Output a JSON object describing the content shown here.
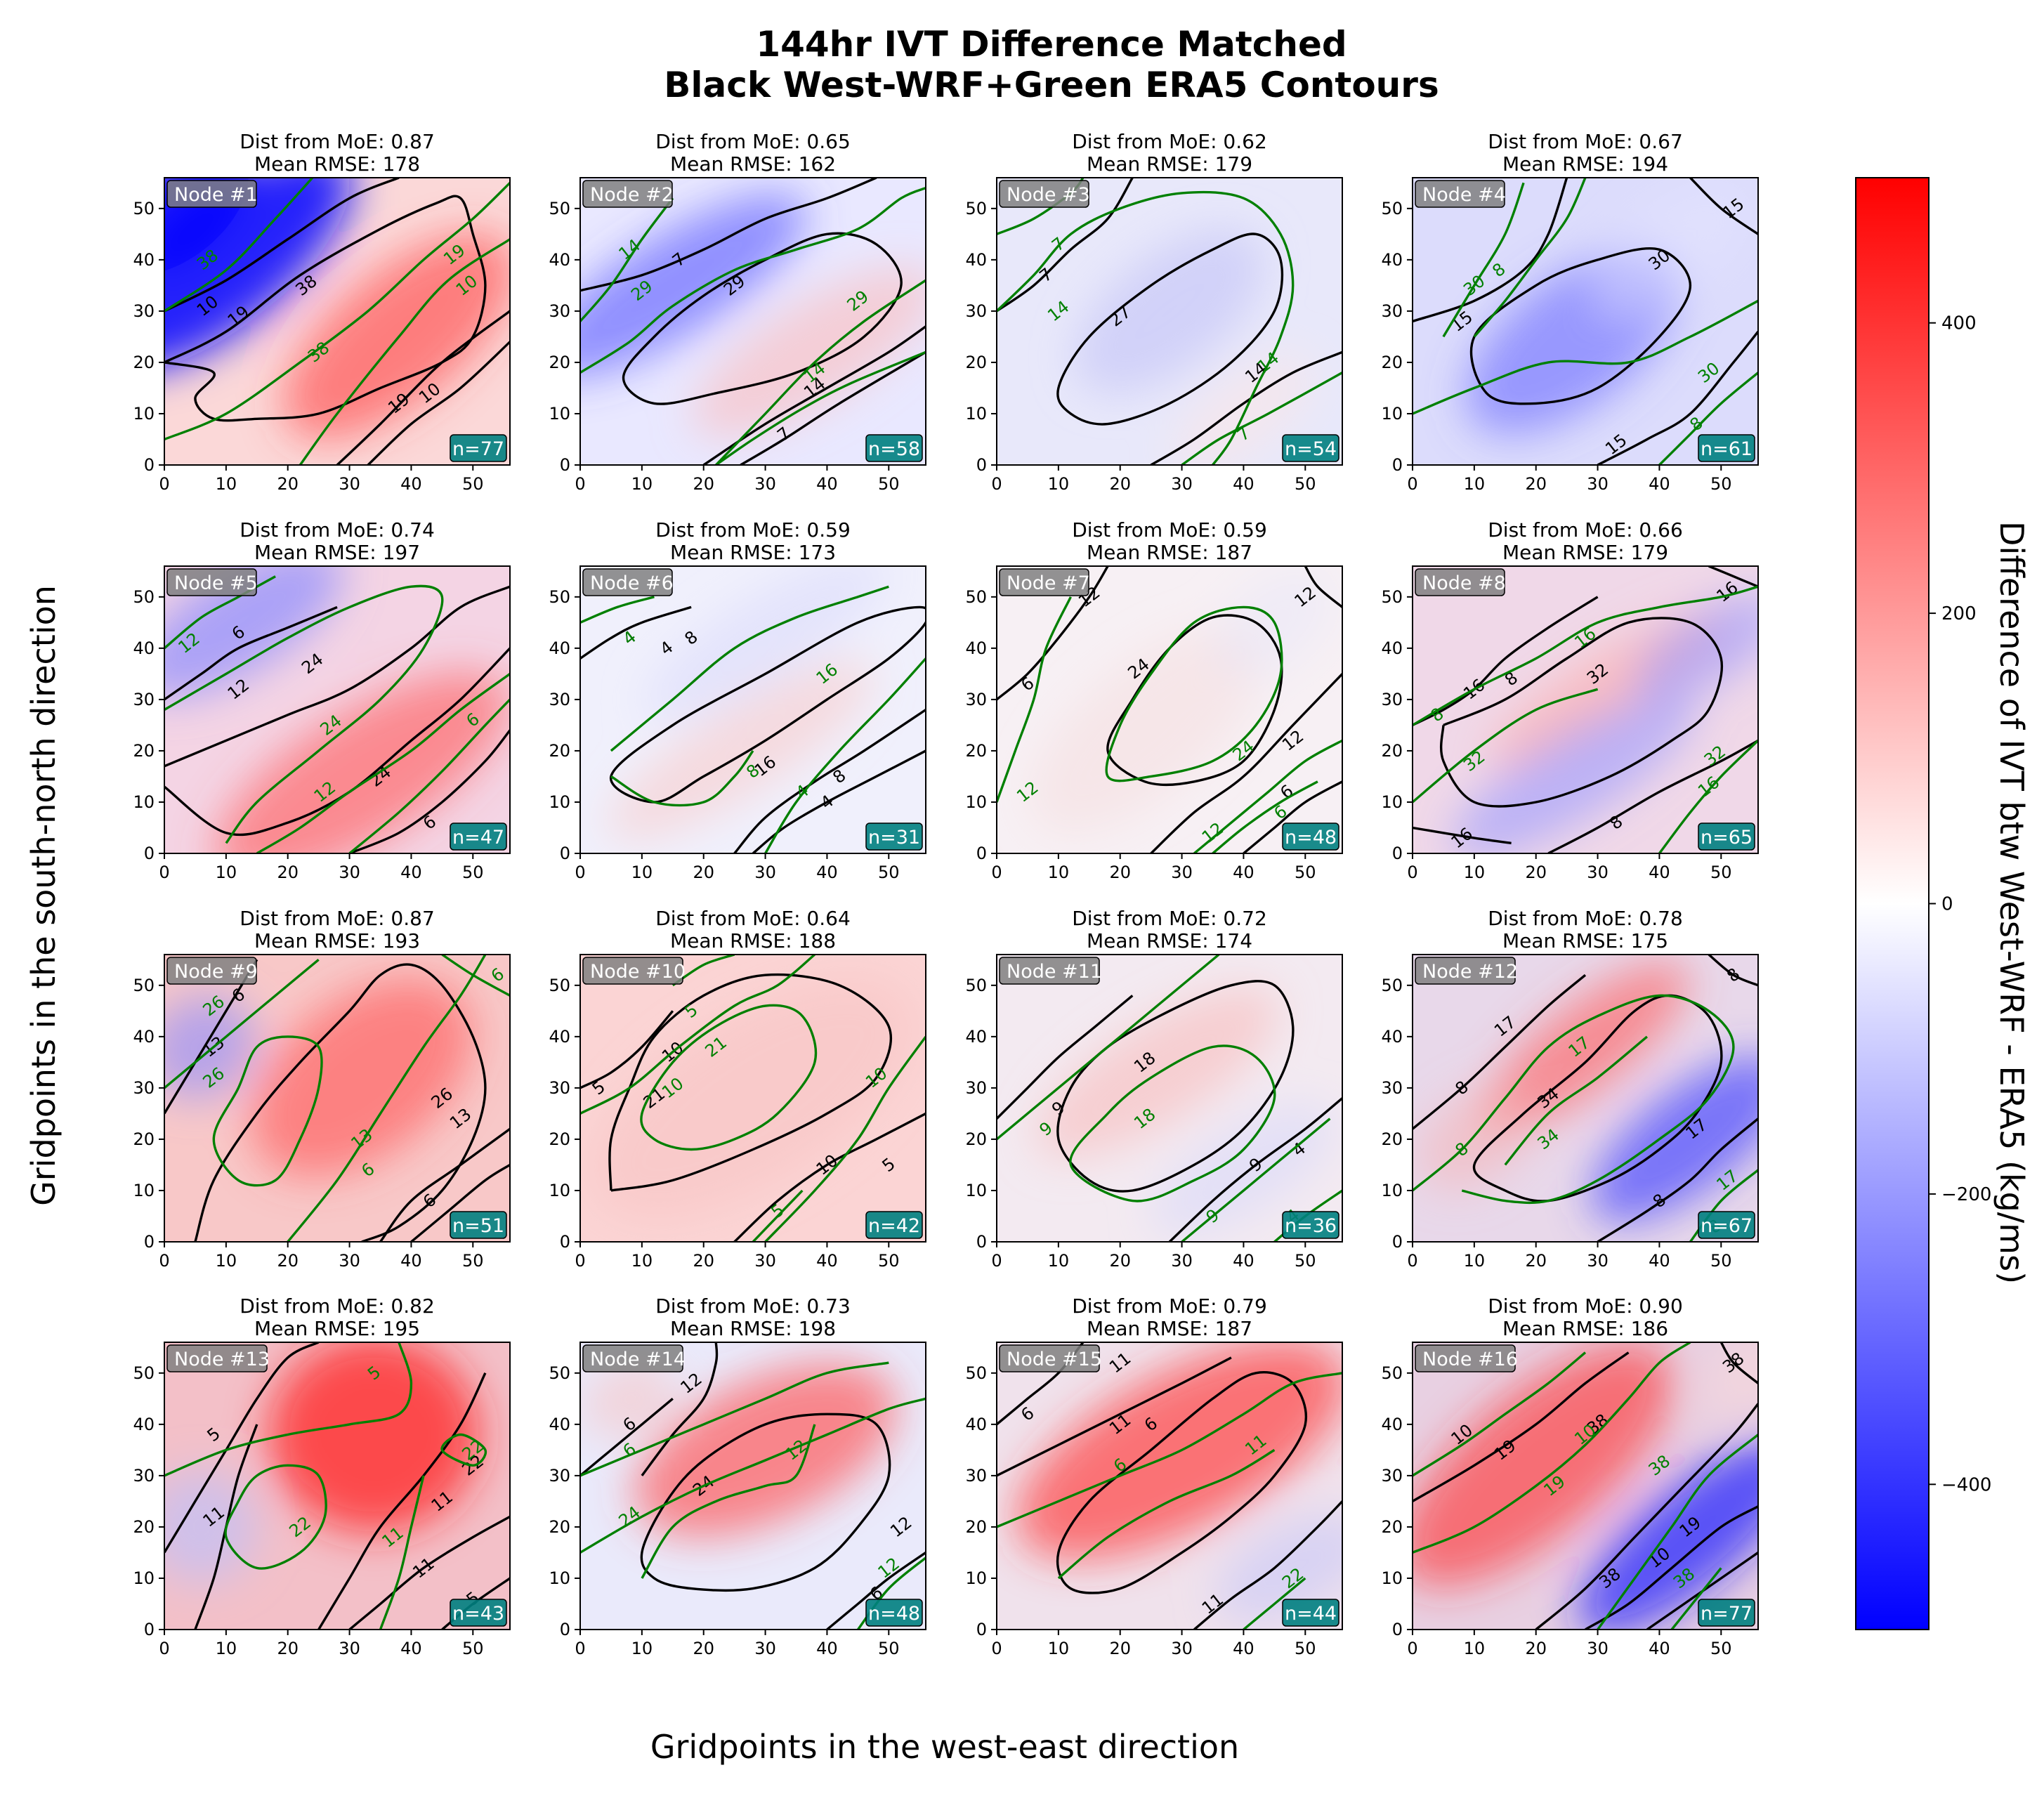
{
  "figure": {
    "title_line1": "144hr IVT Difference Matched",
    "title_line2": "Black West-WRF+Green ERA5 Contours",
    "xlabel": "Gridpoints in the west-east direction",
    "ylabel": "Gridpoints in the south-north direction"
  },
  "colorbar": {
    "label": "Difference of IVT btw West-WRF - ERA5 (kg/ms)",
    "colormap": "bwr",
    "range": [
      -500,
      500
    ],
    "ticks": [
      "400",
      "200",
      "0",
      "−200",
      "−400"
    ],
    "tick_values": [
      400,
      200,
      0,
      -200,
      -400
    ],
    "colors": {
      "low": "#0000ff",
      "mid": "#ffffff",
      "high": "#ff0000"
    }
  },
  "contour_colors": {
    "west_wrf": "#000000",
    "era5": "#008000"
  },
  "chart_data": {
    "type": "heatmap",
    "x_ticks": [
      "0",
      "10",
      "20",
      "30",
      "40",
      "50"
    ],
    "y_ticks": [
      "0",
      "10",
      "20",
      "30",
      "40",
      "50"
    ],
    "xlim": [
      0,
      56
    ],
    "ylim": [
      0,
      56
    ],
    "panels": [
      {
        "node": "Node #1",
        "dist": "Dist from MoE: 0.87",
        "rmse": "Mean RMSE: 178",
        "n": "n=77"
      },
      {
        "node": "Node #2",
        "dist": "Dist from MoE: 0.65",
        "rmse": "Mean RMSE: 162",
        "n": "n=58"
      },
      {
        "node": "Node #3",
        "dist": "Dist from MoE: 0.62",
        "rmse": "Mean RMSE: 179",
        "n": "n=54"
      },
      {
        "node": "Node #4",
        "dist": "Dist from MoE: 0.67",
        "rmse": "Mean RMSE: 194",
        "n": "n=61"
      },
      {
        "node": "Node #5",
        "dist": "Dist from MoE: 0.74",
        "rmse": "Mean RMSE: 197",
        "n": "n=47"
      },
      {
        "node": "Node #6",
        "dist": "Dist from MoE: 0.59",
        "rmse": "Mean RMSE: 173",
        "n": "n=31"
      },
      {
        "node": "Node #7",
        "dist": "Dist from MoE: 0.59",
        "rmse": "Mean RMSE: 187",
        "n": "n=48"
      },
      {
        "node": "Node #8",
        "dist": "Dist from MoE: 0.66",
        "rmse": "Mean RMSE: 179",
        "n": "n=65"
      },
      {
        "node": "Node #9",
        "dist": "Dist from MoE: 0.87",
        "rmse": "Mean RMSE: 193",
        "n": "n=51"
      },
      {
        "node": "Node #10",
        "dist": "Dist from MoE: 0.64",
        "rmse": "Mean RMSE: 188",
        "n": "n=42"
      },
      {
        "node": "Node #11",
        "dist": "Dist from MoE: 0.72",
        "rmse": "Mean RMSE: 174",
        "n": "n=36"
      },
      {
        "node": "Node #12",
        "dist": "Dist from MoE: 0.78",
        "rmse": "Mean RMSE: 175",
        "n": "n=67"
      },
      {
        "node": "Node #13",
        "dist": "Dist from MoE: 0.82",
        "rmse": "Mean RMSE: 195",
        "n": "n=43"
      },
      {
        "node": "Node #14",
        "dist": "Dist from MoE: 0.73",
        "rmse": "Mean RMSE: 198",
        "n": "n=48"
      },
      {
        "node": "Node #15",
        "dist": "Dist from MoE: 0.79",
        "rmse": "Mean RMSE: 187",
        "n": "n=44"
      },
      {
        "node": "Node #16",
        "dist": "Dist from MoE: 0.90",
        "rmse": "Mean RMSE: 186",
        "n": "n=77"
      }
    ]
  }
}
